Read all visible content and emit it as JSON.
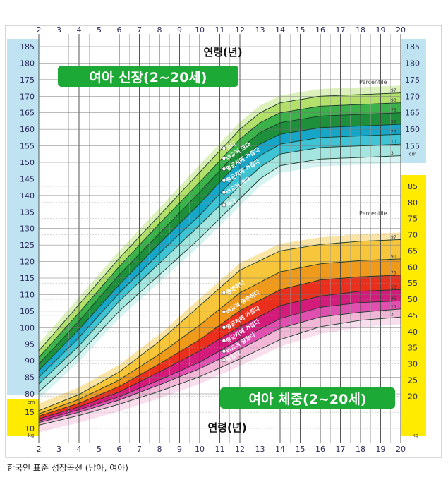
{
  "caption": "한국인 표준 성장곡선 (남아, 여아)",
  "chart_data": {
    "type": "line",
    "x_ticks": [
      2,
      3,
      4,
      5,
      6,
      7,
      8,
      9,
      10,
      11,
      12,
      13,
      14,
      15,
      16,
      17,
      18,
      19,
      20
    ],
    "xlim": [
      2,
      20
    ],
    "xlabel": "연령(년)",
    "height_axis": {
      "ticks": [
        80,
        85,
        90,
        95,
        100,
        105,
        110,
        115,
        120,
        125,
        130,
        135,
        140,
        145,
        150,
        155,
        160,
        165,
        170,
        175,
        180,
        185
      ],
      "unit": "cm",
      "right_ticks": [
        155,
        160,
        165,
        170,
        175,
        180,
        185
      ]
    },
    "weight_axis": {
      "ticks": [
        10,
        15,
        20,
        25,
        30,
        35,
        40,
        45,
        50,
        55,
        60,
        65,
        70,
        75,
        80,
        85
      ],
      "unit": "kg",
      "left_ticks": [
        10,
        15
      ]
    },
    "height": {
      "title": "여아 신장(2~20세)",
      "percentile_label": "Percentile",
      "descriptor_labels": [
        "크다",
        "비교적 크다",
        "평균치에 가깝다",
        "평균치에 가깝다",
        "비교적 작다",
        "작다"
      ],
      "series": [
        {
          "name": "97",
          "x": [
            2,
            4,
            6,
            8,
            10,
            12,
            13,
            14,
            16,
            18,
            20
          ],
          "y": [
            93,
            107,
            121,
            134,
            147,
            160,
            165,
            168,
            170,
            170.5,
            171
          ]
        },
        {
          "name": "90",
          "x": [
            2,
            4,
            6,
            8,
            10,
            12,
            13,
            14,
            16,
            18,
            20
          ],
          "y": [
            91,
            104.5,
            118.5,
            131.5,
            144,
            157,
            162,
            165,
            167,
            167.5,
            168
          ]
        },
        {
          "name": "75",
          "x": [
            2,
            4,
            6,
            8,
            10,
            12,
            13,
            14,
            16,
            18,
            20
          ],
          "y": [
            89,
            102,
            116,
            128.5,
            141,
            154,
            159,
            162,
            164,
            164.5,
            165
          ]
        },
        {
          "name": "50",
          "x": [
            2,
            4,
            6,
            8,
            10,
            12,
            13,
            14,
            16,
            18,
            20
          ],
          "y": [
            87,
            99.5,
            113,
            125.5,
            137.5,
            150.5,
            155.5,
            158.5,
            160.5,
            161,
            161.5
          ]
        },
        {
          "name": "25",
          "x": [
            2,
            4,
            6,
            8,
            10,
            12,
            13,
            14,
            16,
            18,
            20
          ],
          "y": [
            85,
            97,
            110.5,
            122.5,
            134,
            147,
            152,
            155.5,
            157.5,
            158,
            158.5
          ]
        },
        {
          "name": "10",
          "x": [
            2,
            4,
            6,
            8,
            10,
            12,
            13,
            14,
            16,
            18,
            20
          ],
          "y": [
            83,
            94.5,
            108,
            119.5,
            131,
            143,
            148.5,
            152.5,
            154.5,
            155,
            155.5
          ]
        },
        {
          "name": "3",
          "x": [
            2,
            4,
            6,
            8,
            10,
            12,
            13,
            14,
            16,
            18,
            20
          ],
          "y": [
            80.5,
            92,
            105,
            116,
            127,
            139,
            145,
            149,
            151,
            151.5,
            152
          ]
        }
      ]
    },
    "weight": {
      "title": "여아 체중(2~20세)",
      "percentile_label": "Percentile",
      "descriptor_labels": [
        "뚱뚱하다",
        "비교적 뚱뚱하다",
        "평균치에 가깝다",
        "평균치에 가깝다",
        "비교적 말랐다",
        "말랐다"
      ],
      "series": [
        {
          "name": "97",
          "x": [
            2,
            4,
            6,
            8,
            10,
            12,
            14,
            16,
            18,
            20
          ],
          "y": [
            15.5,
            20.5,
            27.5,
            37,
            48,
            59,
            65,
            67,
            68,
            68.5
          ]
        },
        {
          "name": "90",
          "x": [
            2,
            4,
            6,
            8,
            10,
            12,
            14,
            16,
            18,
            20
          ],
          "y": [
            14.5,
            19,
            25,
            33,
            42,
            52,
            58.5,
            61,
            62,
            62.5
          ]
        },
        {
          "name": "75",
          "x": [
            2,
            4,
            6,
            8,
            10,
            12,
            14,
            16,
            18,
            20
          ],
          "y": [
            13.8,
            17.8,
            23,
            30,
            37.5,
            46.5,
            53,
            56,
            57,
            57.5
          ]
        },
        {
          "name": "50",
          "x": [
            2,
            4,
            6,
            8,
            10,
            12,
            14,
            16,
            18,
            20
          ],
          "y": [
            13,
            16.7,
            21.3,
            27.5,
            34,
            41.5,
            48,
            51,
            52.5,
            53
          ]
        },
        {
          "name": "25",
          "x": [
            2,
            4,
            6,
            8,
            10,
            12,
            14,
            16,
            18,
            20
          ],
          "y": [
            12.3,
            15.8,
            19.8,
            25,
            30.5,
            37.5,
            44,
            47.5,
            49,
            49.5
          ]
        },
        {
          "name": "10",
          "x": [
            2,
            4,
            6,
            8,
            10,
            12,
            14,
            16,
            18,
            20
          ],
          "y": [
            11.8,
            15,
            18.8,
            23.5,
            28.5,
            34.5,
            41,
            44.5,
            46,
            47
          ]
        },
        {
          "name": "3",
          "x": [
            2,
            4,
            6,
            8,
            10,
            12,
            14,
            16,
            18,
            20
          ],
          "y": [
            11,
            14,
            17.5,
            21.5,
            26,
            31.5,
            37.5,
            41.5,
            43.5,
            44.5
          ]
        }
      ]
    },
    "colors": {
      "height_bands": [
        "#b2e06a",
        "#3cb34a",
        "#1e8f3a",
        "#16a7c8",
        "#3fc4d6",
        "#a4e6df"
      ],
      "weight_bands": [
        "#f7c63a",
        "#f09a1c",
        "#ea2f1c",
        "#d41a7a",
        "#e24fb0",
        "#f2b6d6"
      ],
      "axis_blue": "#bfe3f1",
      "axis_yellow": "#ffeb00",
      "title_green": "#1da935"
    }
  }
}
